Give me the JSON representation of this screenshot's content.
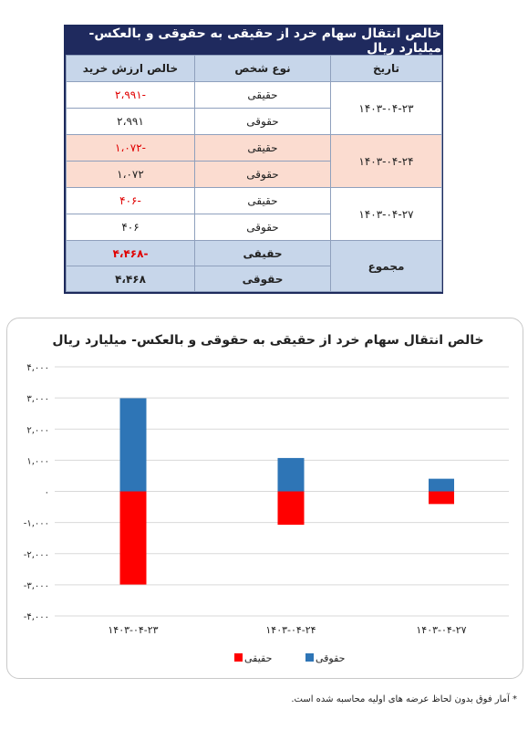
{
  "table": {
    "title": "خالص انتقال سهام خرد از حقیقی به حقوقی و بالعکس- میلیارد ریال",
    "headers": {
      "date": "تاریخ",
      "person_type": "نوع شخص",
      "net_value": "خالص ارزش خرید"
    },
    "groups": [
      {
        "date": "۱۴۰۳-۰۴-۲۳",
        "rows": [
          {
            "type": "حقیقی",
            "value": "-۲،۹۹۱"
          },
          {
            "type": "حقوقی",
            "value": "۲،۹۹۱"
          }
        ]
      },
      {
        "date": "۱۴۰۳-۰۴-۲۴",
        "rows": [
          {
            "type": "حقیقی",
            "value": "-۱،۰۷۲"
          },
          {
            "type": "حقوقی",
            "value": "۱،۰۷۲"
          }
        ]
      },
      {
        "date": "۱۴۰۳-۰۴-۲۷",
        "rows": [
          {
            "type": "حقیقی",
            "value": "-۴۰۶"
          },
          {
            "type": "حقوقی",
            "value": "۴۰۶"
          }
        ]
      }
    ],
    "total": {
      "label": "مجموع",
      "rows": [
        {
          "type": "حقیقی",
          "value": "-۴،۴۶۸"
        },
        {
          "type": "حقوقی",
          "value": "۴،۴۶۸"
        }
      ]
    },
    "colors": {
      "header_bg": "#1f2a5e",
      "subheader_bg": "#c7d6ea",
      "highlight_bg": "#fbdcd0",
      "negative": "#e00000"
    }
  },
  "chart_data": {
    "type": "bar",
    "stacked": true,
    "title": "خالص انتقال سهام خرد از حقیقی به حقوقی و بالعکس- میلیارد ریال",
    "categories": [
      "۱۴۰۳-۰۴-۲۳",
      "۱۴۰۳-۰۴-۲۴",
      "۱۴۰۳-۰۴-۲۷"
    ],
    "series": [
      {
        "name": "حقیقی",
        "color": "#ff0000",
        "values": [
          -2991,
          -1072,
          -406
        ]
      },
      {
        "name": "حقوقی",
        "color": "#2e75b6",
        "values": [
          2991,
          1072,
          406
        ]
      }
    ],
    "ylim": [
      -4000,
      4000
    ],
    "yticks": [
      4000,
      3000,
      2000,
      1000,
      0,
      -1000,
      -2000,
      -3000,
      -4000
    ],
    "ytick_labels": [
      "۴,۰۰۰",
      "۳,۰۰۰",
      "۲,۰۰۰",
      "۱,۰۰۰",
      "۰",
      "-۱,۰۰۰",
      "-۲,۰۰۰",
      "-۳,۰۰۰",
      "-۴,۰۰۰"
    ],
    "grid": true,
    "legend_position": "bottom",
    "xlabel": "",
    "ylabel": ""
  },
  "footnote": "* آمار فوق بدون لحاظ عرضه های اولیه محاسبه شده است."
}
